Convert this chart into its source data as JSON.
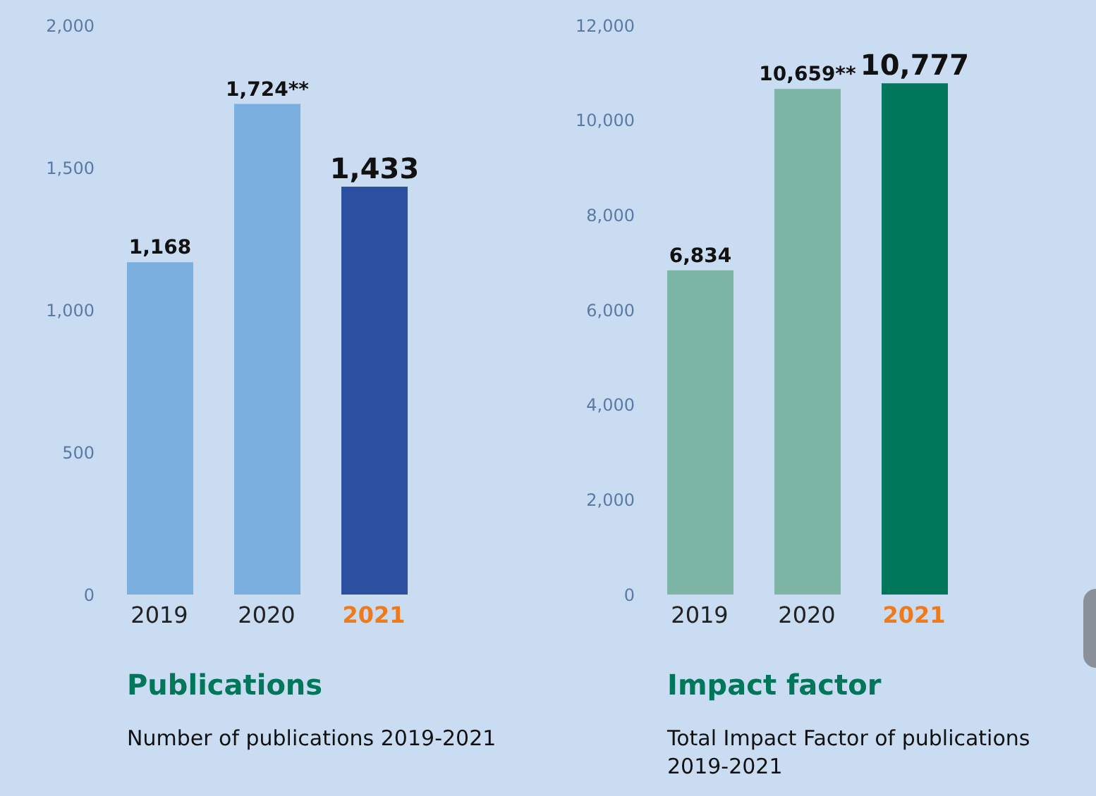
{
  "chart_data": [
    {
      "type": "bar",
      "title": "Publications",
      "subtitle": "Number of publications 2019-2021",
      "categories": [
        "2019",
        "2020",
        "2021"
      ],
      "values": [
        1168,
        1724,
        1433
      ],
      "colors": [
        "#7aafe0",
        "#7aafe0",
        "#2c4f9f"
      ],
      "value_labels": [
        "1,168",
        "1,724**",
        "1,433"
      ],
      "ylim": [
        0,
        2000
      ],
      "yticks": [
        0,
        {
          "value": 500,
          "label": "500"
        },
        {
          "value": 1000,
          "label": "1,000"
        },
        {
          "value": 1500,
          "label": "1,500"
        },
        {
          "value": 2000,
          "label": "2,000"
        }
      ]
    },
    {
      "type": "bar",
      "title": "Impact factor",
      "subtitle": "Total Impact Factor of publications 2019-2021",
      "categories": [
        "2019",
        "2020",
        "2021"
      ],
      "values": [
        6834,
        10659,
        10777
      ],
      "colors": [
        "#7db5a6",
        "#7db5a6",
        "#00775a"
      ],
      "value_labels": [
        "6,834",
        "10,659**",
        "10,777"
      ],
      "ylim": [
        0,
        12000
      ],
      "yticks": [
        0,
        {
          "value": 2000,
          "label": "2,000"
        },
        {
          "value": 4000,
          "label": "4,000"
        },
        {
          "value": 6000,
          "label": "6,000"
        },
        {
          "value": 8000,
          "label": "8,000"
        },
        {
          "value": 10000,
          "label": "10,000"
        },
        {
          "value": 12000,
          "label": "12,000"
        }
      ]
    }
  ]
}
